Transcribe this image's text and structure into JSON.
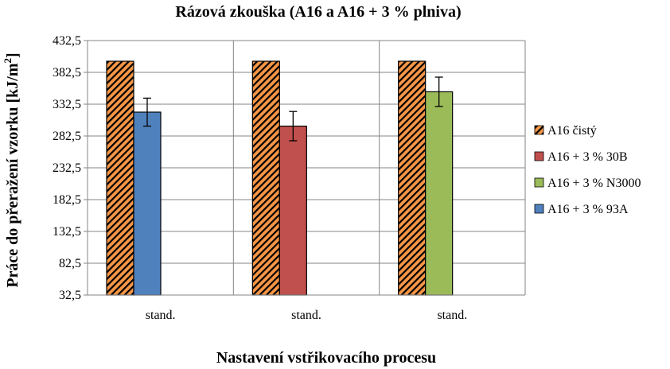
{
  "chart_data": {
    "type": "bar",
    "title": "Rázová zkouška (A16 a A16 + 3 % plniva)",
    "xlabel": "Nastavení vstřikovacího procesu",
    "ylabel": "Práce do přeražení vzorku [kJ/m",
    "ylabel_superscript": "2",
    "ylabel_close": "]",
    "ylim": [
      32.5,
      432.5
    ],
    "yticks": [
      "32,5",
      "82,5",
      "132,5",
      "182,5",
      "232,5",
      "282,5",
      "332,5",
      "382,5",
      "432,5"
    ],
    "ytick_values": [
      32.5,
      82.5,
      132.5,
      182.5,
      232.5,
      282.5,
      332.5,
      382.5,
      432.5
    ],
    "grid": true,
    "legend_position": "right",
    "categories": [
      "stand.",
      "stand.",
      "stand."
    ],
    "series": [
      {
        "name": "A16 čistý",
        "color": "#F79646",
        "hatched": true,
        "values": [
          400,
          400,
          400
        ],
        "errors": [
          null,
          null,
          null
        ]
      },
      {
        "name": "A16 + 3 % 30B",
        "color": "#C0504D",
        "hatched": false,
        "values": [
          null,
          298,
          null
        ],
        "errors": [
          null,
          23,
          null
        ]
      },
      {
        "name": "A16 + 3 % N3000",
        "color": "#9BBB59",
        "hatched": false,
        "values": [
          null,
          null,
          352
        ],
        "errors": [
          null,
          null,
          23
        ]
      },
      {
        "name": "A16 + 3 % 93A",
        "color": "#4F81BD",
        "hatched": false,
        "values": [
          320,
          null,
          null
        ],
        "errors": [
          22,
          null,
          null
        ]
      }
    ]
  }
}
